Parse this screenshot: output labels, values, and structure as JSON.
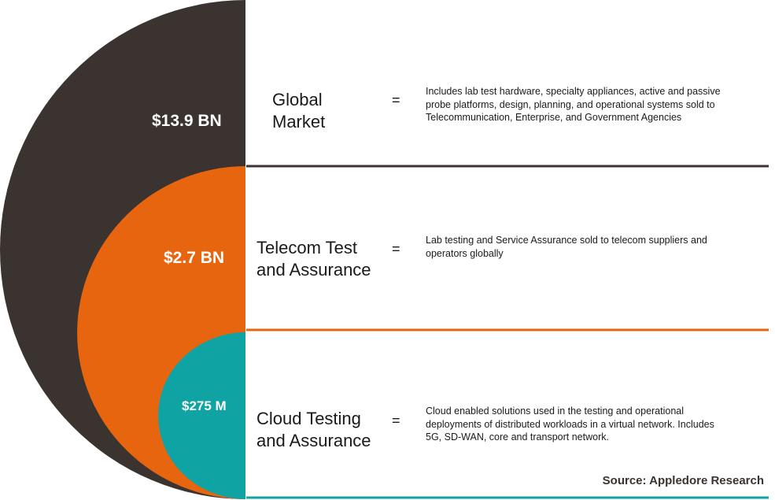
{
  "colors": {
    "global": "#3a3330",
    "telecom": "#e8650f",
    "cloud": "#0fa3a3"
  },
  "segments": [
    {
      "value": "$13.9 BN",
      "title_lines": [
        "Global",
        "Market"
      ],
      "equals": "=",
      "description": "Includes lab test hardware, specialty appliances, active and passive probe platforms, design, planning, and operational systems sold to Telecommunication, Enterprise, and Government Agencies"
    },
    {
      "value": "$2.7 BN",
      "title_lines": [
        "Telecom Test",
        "and Assurance"
      ],
      "equals": "=",
      "description": "Lab testing and Service Assurance sold to telecom suppliers and operators globally"
    },
    {
      "value": "$275 M",
      "title_lines": [
        "Cloud Testing",
        "and Assurance"
      ],
      "equals": "=",
      "description": "Cloud enabled solutions used in the testing and operational deployments of distributed workloads in a virtual network. Includes 5G, SD-WAN, core and transport network."
    }
  ],
  "source": "Source: Appledore Research"
}
